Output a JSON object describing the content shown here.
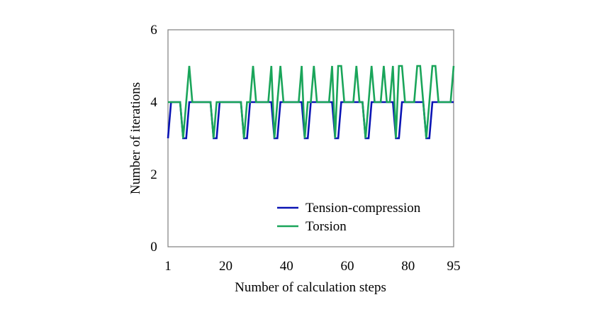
{
  "chart_data": {
    "type": "line",
    "title": "",
    "xlabel": "Number of calculation steps",
    "ylabel": "Number of iterations",
    "xlim": [
      1,
      95
    ],
    "ylim": [
      0,
      6
    ],
    "xticks": [
      1,
      20,
      40,
      60,
      80,
      95
    ],
    "yticks": [
      0,
      2,
      4,
      6
    ],
    "grid": false,
    "legend_position": "bottom-right",
    "series": [
      {
        "name": "Tension-compression",
        "color": "#0a14b4",
        "points": [
          [
            1,
            3
          ],
          [
            2,
            4
          ],
          [
            3,
            4
          ],
          [
            4,
            4
          ],
          [
            5,
            4
          ],
          [
            6,
            3
          ],
          [
            7,
            3
          ],
          [
            8,
            4
          ],
          [
            9,
            4
          ],
          [
            10,
            4
          ],
          [
            11,
            4
          ],
          [
            12,
            4
          ],
          [
            13,
            4
          ],
          [
            14,
            4
          ],
          [
            15,
            4
          ],
          [
            16,
            3
          ],
          [
            17,
            3
          ],
          [
            18,
            4
          ],
          [
            19,
            4
          ],
          [
            20,
            4
          ],
          [
            21,
            4
          ],
          [
            22,
            4
          ],
          [
            23,
            4
          ],
          [
            24,
            4
          ],
          [
            25,
            4
          ],
          [
            26,
            3
          ],
          [
            27,
            3
          ],
          [
            28,
            4
          ],
          [
            29,
            4
          ],
          [
            30,
            4
          ],
          [
            31,
            4
          ],
          [
            32,
            4
          ],
          [
            33,
            4
          ],
          [
            34,
            4
          ],
          [
            35,
            4
          ],
          [
            36,
            3
          ],
          [
            37,
            3
          ],
          [
            38,
            4
          ],
          [
            39,
            4
          ],
          [
            40,
            4
          ],
          [
            41,
            4
          ],
          [
            42,
            4
          ],
          [
            43,
            4
          ],
          [
            44,
            4
          ],
          [
            45,
            4
          ],
          [
            46,
            3
          ],
          [
            47,
            3
          ],
          [
            48,
            4
          ],
          [
            49,
            4
          ],
          [
            50,
            4
          ],
          [
            51,
            4
          ],
          [
            52,
            4
          ],
          [
            53,
            4
          ],
          [
            54,
            4
          ],
          [
            55,
            4
          ],
          [
            56,
            3
          ],
          [
            57,
            3
          ],
          [
            58,
            4
          ],
          [
            59,
            4
          ],
          [
            60,
            4
          ],
          [
            61,
            4
          ],
          [
            62,
            4
          ],
          [
            63,
            4
          ],
          [
            64,
            4
          ],
          [
            65,
            4
          ],
          [
            66,
            3
          ],
          [
            67,
            3
          ],
          [
            68,
            4
          ],
          [
            69,
            4
          ],
          [
            70,
            4
          ],
          [
            71,
            4
          ],
          [
            72,
            4
          ],
          [
            73,
            4
          ],
          [
            74,
            4
          ],
          [
            75,
            4
          ],
          [
            76,
            3
          ],
          [
            77,
            3
          ],
          [
            78,
            4
          ],
          [
            79,
            4
          ],
          [
            80,
            4
          ],
          [
            81,
            4
          ],
          [
            82,
            4
          ],
          [
            83,
            4
          ],
          [
            84,
            4
          ],
          [
            85,
            4
          ],
          [
            86,
            3
          ],
          [
            87,
            3
          ],
          [
            88,
            4
          ],
          [
            89,
            4
          ],
          [
            90,
            4
          ],
          [
            91,
            4
          ],
          [
            92,
            4
          ],
          [
            93,
            4
          ],
          [
            94,
            4
          ],
          [
            95,
            4
          ]
        ]
      },
      {
        "name": "Torsion",
        "color": "#1aa55a",
        "points": [
          [
            1,
            4
          ],
          [
            2,
            4
          ],
          [
            3,
            4
          ],
          [
            4,
            4
          ],
          [
            5,
            4
          ],
          [
            6,
            3
          ],
          [
            7,
            4
          ],
          [
            8,
            5
          ],
          [
            9,
            4
          ],
          [
            10,
            4
          ],
          [
            11,
            4
          ],
          [
            12,
            4
          ],
          [
            13,
            4
          ],
          [
            14,
            4
          ],
          [
            15,
            4
          ],
          [
            16,
            3
          ],
          [
            17,
            4
          ],
          [
            18,
            4
          ],
          [
            19,
            4
          ],
          [
            20,
            4
          ],
          [
            21,
            4
          ],
          [
            22,
            4
          ],
          [
            23,
            4
          ],
          [
            24,
            4
          ],
          [
            25,
            4
          ],
          [
            26,
            3
          ],
          [
            27,
            4
          ],
          [
            28,
            4
          ],
          [
            29,
            5
          ],
          [
            30,
            4
          ],
          [
            31,
            4
          ],
          [
            32,
            4
          ],
          [
            33,
            4
          ],
          [
            34,
            4
          ],
          [
            35,
            5
          ],
          [
            36,
            3
          ],
          [
            37,
            4
          ],
          [
            38,
            5
          ],
          [
            39,
            4
          ],
          [
            40,
            4
          ],
          [
            41,
            4
          ],
          [
            42,
            4
          ],
          [
            43,
            4
          ],
          [
            44,
            4
          ],
          [
            45,
            5
          ],
          [
            46,
            3
          ],
          [
            47,
            4
          ],
          [
            48,
            4
          ],
          [
            49,
            5
          ],
          [
            50,
            4
          ],
          [
            51,
            4
          ],
          [
            52,
            4
          ],
          [
            53,
            4
          ],
          [
            54,
            4
          ],
          [
            55,
            5
          ],
          [
            56,
            3
          ],
          [
            57,
            5
          ],
          [
            58,
            5
          ],
          [
            59,
            4
          ],
          [
            60,
            4
          ],
          [
            61,
            4
          ],
          [
            62,
            4
          ],
          [
            63,
            5
          ],
          [
            64,
            4
          ],
          [
            65,
            4
          ],
          [
            66,
            3
          ],
          [
            67,
            4
          ],
          [
            68,
            5
          ],
          [
            69,
            4
          ],
          [
            70,
            4
          ],
          [
            71,
            4
          ],
          [
            72,
            5
          ],
          [
            73,
            4
          ],
          [
            74,
            4
          ],
          [
            75,
            5
          ],
          [
            76,
            3
          ],
          [
            77,
            5
          ],
          [
            78,
            5
          ],
          [
            79,
            4
          ],
          [
            80,
            4
          ],
          [
            81,
            4
          ],
          [
            82,
            4
          ],
          [
            83,
            5
          ],
          [
            84,
            5
          ],
          [
            85,
            4
          ],
          [
            86,
            3
          ],
          [
            87,
            4
          ],
          [
            88,
            5
          ],
          [
            89,
            5
          ],
          [
            90,
            4
          ],
          [
            91,
            4
          ],
          [
            92,
            4
          ],
          [
            93,
            4
          ],
          [
            94,
            4
          ],
          [
            95,
            5
          ]
        ]
      }
    ]
  }
}
